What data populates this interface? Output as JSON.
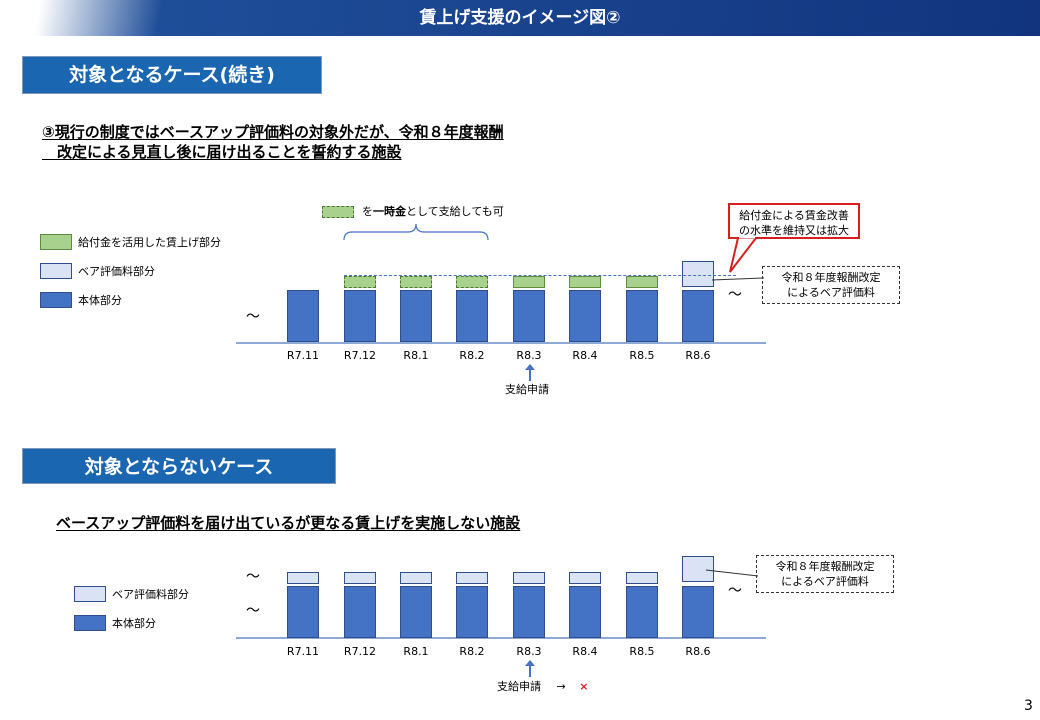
{
  "header": {
    "title": "賃上げ支援のイメージ図②"
  },
  "section1": {
    "tag": "対象となるケース(続き)",
    "heading_line1": "③現行の制度ではベースアップ評価料の対象外だが、令和８年度報酬",
    "heading_line2": "　改定による見直し後に届け出ることを誓約する施設",
    "legend": [
      {
        "label": "給付金を活用した賃上げ部分",
        "color": "#a9d18e"
      },
      {
        "label": "ベア評価料部分",
        "color": "#dae3f3"
      },
      {
        "label": "本体部分",
        "color": "#4472c4"
      }
    ],
    "bracket_note_pre": "を",
    "bracket_note_bold": "一時金",
    "bracket_note_post": "として支給しても可",
    "x_labels": [
      "R7.11",
      "R7.12",
      "R8.1",
      "R8.2",
      "R8.3",
      "R8.4",
      "R8.5",
      "R8.6"
    ],
    "apply_label": "支給申請",
    "red_callout_line1": "給付金による賃金改善",
    "red_callout_line2": "の水準を維持又は拡大",
    "dash_callout_line1": "令和８年度報酬改定",
    "dash_callout_line2": "によるベア評価料",
    "tilde": "～"
  },
  "section2": {
    "tag": "対象とならないケース",
    "heading": "ベースアップ評価料を届け出ているが更なる賃上げを実施しない施設",
    "legend": [
      {
        "label": "ベア評価料部分",
        "color": "#dae3f3"
      },
      {
        "label": "本体部分",
        "color": "#4472c4"
      }
    ],
    "x_labels": [
      "R7.11",
      "R7.12",
      "R8.1",
      "R8.2",
      "R8.3",
      "R8.4",
      "R8.5",
      "R8.6"
    ],
    "apply_label": "支給申請",
    "apply_arrow": "→",
    "apply_result": "×",
    "dash_callout_line1": "令和８年度報酬改定",
    "dash_callout_line2": "によるベア評価料",
    "tilde": "～"
  },
  "page_number": "3"
}
